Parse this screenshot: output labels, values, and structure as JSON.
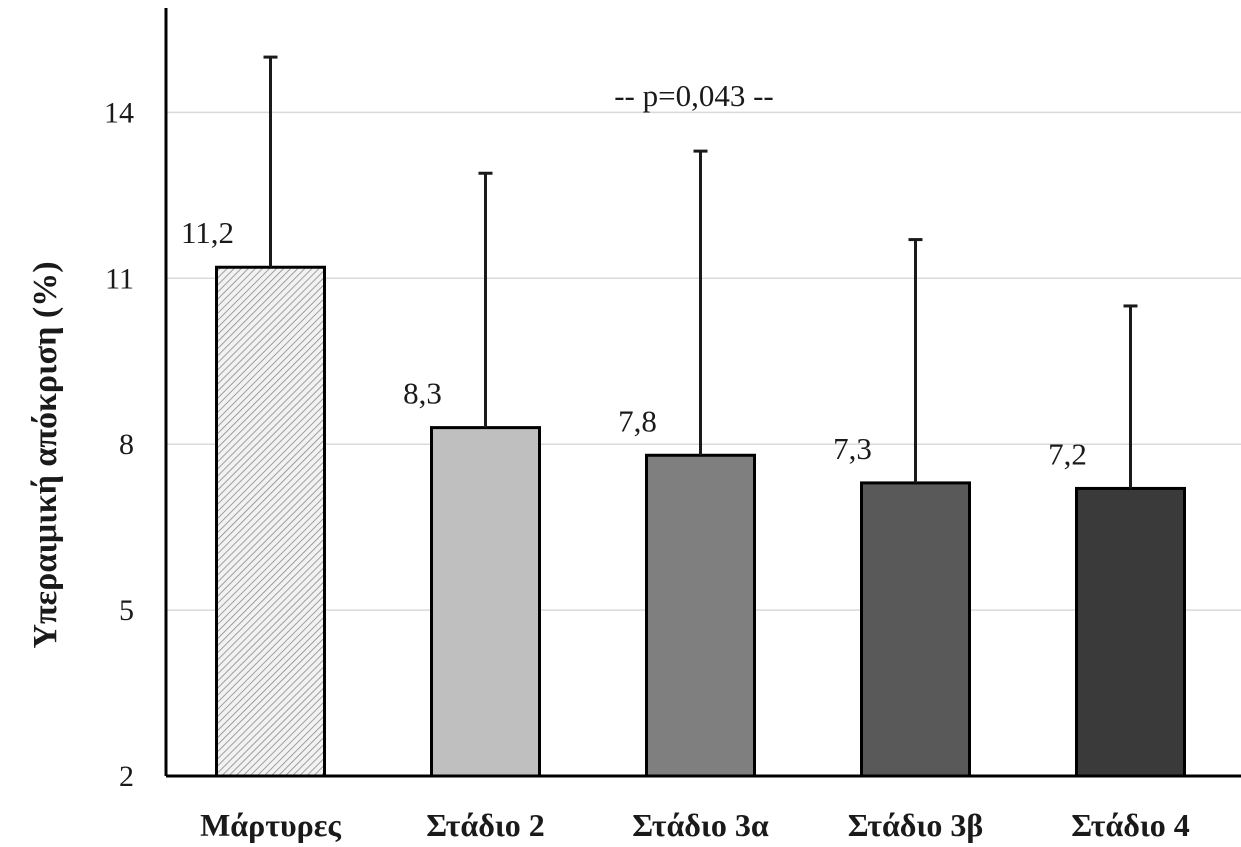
{
  "chart_data": {
    "type": "bar",
    "title": "",
    "xlabel": "",
    "ylabel": "Υπεραιμική απόκριση (%)",
    "categories": [
      "Μάρτυρες",
      "Στάδιο 2",
      "Στάδιο 3α",
      "Στάδιο 3β",
      "Στάδιο 4"
    ],
    "values": [
      11.2,
      8.3,
      7.8,
      7.3,
      7.2
    ],
    "value_labels": [
      "11,2",
      "8,3",
      "7,8",
      "7,3",
      "7,2"
    ],
    "error_upper": [
      15.0,
      12.9,
      13.3,
      11.7,
      10.5
    ],
    "bar_colors": [
      "hatched",
      "#bfbfbf",
      "#7f7f7f",
      "#595959",
      "#3a3a3a"
    ],
    "yticks": [
      2,
      5,
      8,
      11,
      14
    ],
    "ytick_labels": [
      "2",
      "5",
      "8",
      "11",
      "14"
    ],
    "ylim": [
      2,
      16
    ],
    "grid": true,
    "annotation": "-- p=0,043 --"
  }
}
